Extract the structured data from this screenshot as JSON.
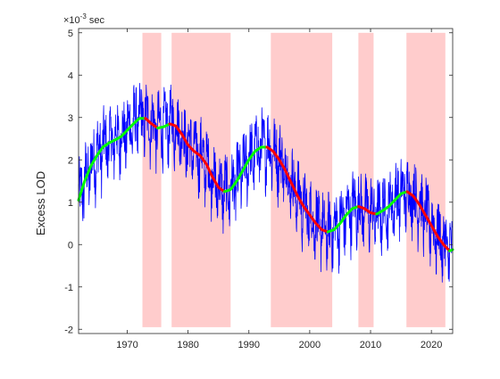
{
  "chart_data": {
    "type": "line",
    "title": "",
    "xlabel": "",
    "ylabel": "Excess LOD",
    "y_exponent_label": "×10",
    "y_exponent_power": "-3",
    "y_unit": " sec",
    "xlim": [
      1962,
      2023.5
    ],
    "ylim": [
      -2.1,
      5.1
    ],
    "x_ticks": [
      1970,
      1980,
      1990,
      2000,
      2010,
      2020
    ],
    "x_tick_labels": [
      "1970",
      "1980",
      "1990",
      "2000",
      "2010",
      "2020"
    ],
    "y_ticks": [
      -2,
      -1,
      0,
      1,
      2,
      3,
      4,
      5
    ],
    "y_tick_labels": [
      "-2",
      "-1",
      "0",
      "1",
      "2",
      "3",
      "4",
      "5"
    ],
    "grid": false,
    "shaded_intervals": [
      [
        1972.5,
        1975.6
      ],
      [
        1977.3,
        1987.0
      ],
      [
        1993.6,
        2003.7
      ],
      [
        2008.0,
        2010.5
      ],
      [
        2015.9,
        2022.3
      ]
    ],
    "series": [
      {
        "role": "raw",
        "color": "#0000ff",
        "x": [
          1962,
          1963,
          1964,
          1965,
          1966,
          1967,
          1968,
          1969,
          1970,
          1971,
          1972,
          1973,
          1974,
          1975,
          1976,
          1977,
          1978,
          1979,
          1980,
          1981,
          1982,
          1983,
          1984,
          1985,
          1986,
          1987,
          1988,
          1989,
          1990,
          1991,
          1992,
          1993,
          1994,
          1995,
          1996,
          1997,
          1998,
          1999,
          2000,
          2001,
          2002,
          2003,
          2004,
          2005,
          2006,
          2007,
          2008,
          2009,
          2010,
          2011,
          2012,
          2013,
          2014,
          2015,
          2016,
          2017,
          2018,
          2019,
          2020,
          2021,
          2022,
          2023,
          2023.5
        ],
        "y": [
          1.05,
          1.5,
          1.85,
          2.1,
          2.3,
          2.4,
          2.47,
          2.55,
          2.7,
          2.85,
          2.98,
          2.98,
          2.85,
          2.75,
          2.78,
          2.85,
          2.8,
          2.6,
          2.35,
          2.2,
          2.1,
          1.9,
          1.6,
          1.35,
          1.25,
          1.3,
          1.5,
          1.75,
          2.0,
          2.2,
          2.3,
          2.3,
          2.2,
          2.0,
          1.75,
          1.45,
          1.15,
          0.9,
          0.7,
          0.5,
          0.35,
          0.3,
          0.35,
          0.5,
          0.7,
          0.85,
          0.9,
          0.85,
          0.75,
          0.72,
          0.8,
          0.9,
          1.05,
          1.2,
          1.25,
          1.15,
          0.95,
          0.7,
          0.45,
          0.2,
          0.0,
          -0.15,
          -0.12
        ],
        "noise_amplitude": 0.8
      },
      {
        "role": "smoothed",
        "colors_by_segment": [
          "#00ff00",
          "#ff0000"
        ],
        "x": [
          1962,
          1963,
          1964,
          1965,
          1966,
          1967,
          1968,
          1969,
          1970,
          1971,
          1972,
          1973,
          1974,
          1975,
          1976,
          1977,
          1978,
          1979,
          1980,
          1981,
          1982,
          1983,
          1984,
          1985,
          1986,
          1987,
          1988,
          1989,
          1990,
          1991,
          1992,
          1993,
          1994,
          1995,
          1996,
          1997,
          1998,
          1999,
          2000,
          2001,
          2002,
          2003,
          2004,
          2005,
          2006,
          2007,
          2008,
          2009,
          2010,
          2011,
          2012,
          2013,
          2014,
          2015,
          2016,
          2017,
          2018,
          2019,
          2020,
          2021,
          2022,
          2023,
          2023.5
        ],
        "y": [
          1.05,
          1.5,
          1.85,
          2.1,
          2.3,
          2.4,
          2.47,
          2.55,
          2.7,
          2.85,
          2.98,
          2.98,
          2.85,
          2.75,
          2.78,
          2.85,
          2.8,
          2.6,
          2.35,
          2.2,
          2.1,
          1.9,
          1.6,
          1.35,
          1.25,
          1.3,
          1.5,
          1.75,
          2.0,
          2.2,
          2.3,
          2.3,
          2.2,
          2.0,
          1.75,
          1.45,
          1.15,
          0.9,
          0.7,
          0.5,
          0.35,
          0.3,
          0.35,
          0.5,
          0.7,
          0.85,
          0.9,
          0.85,
          0.75,
          0.72,
          0.8,
          0.9,
          1.05,
          1.2,
          1.25,
          1.15,
          0.95,
          0.7,
          0.45,
          0.2,
          0.0,
          -0.15,
          -0.12
        ]
      }
    ],
    "colors": {
      "shade": "#ffcccc",
      "raw": "#0000ff",
      "trend_rising": "#00ff00",
      "trend_falling": "#ff0000",
      "axes": "#262626"
    }
  }
}
